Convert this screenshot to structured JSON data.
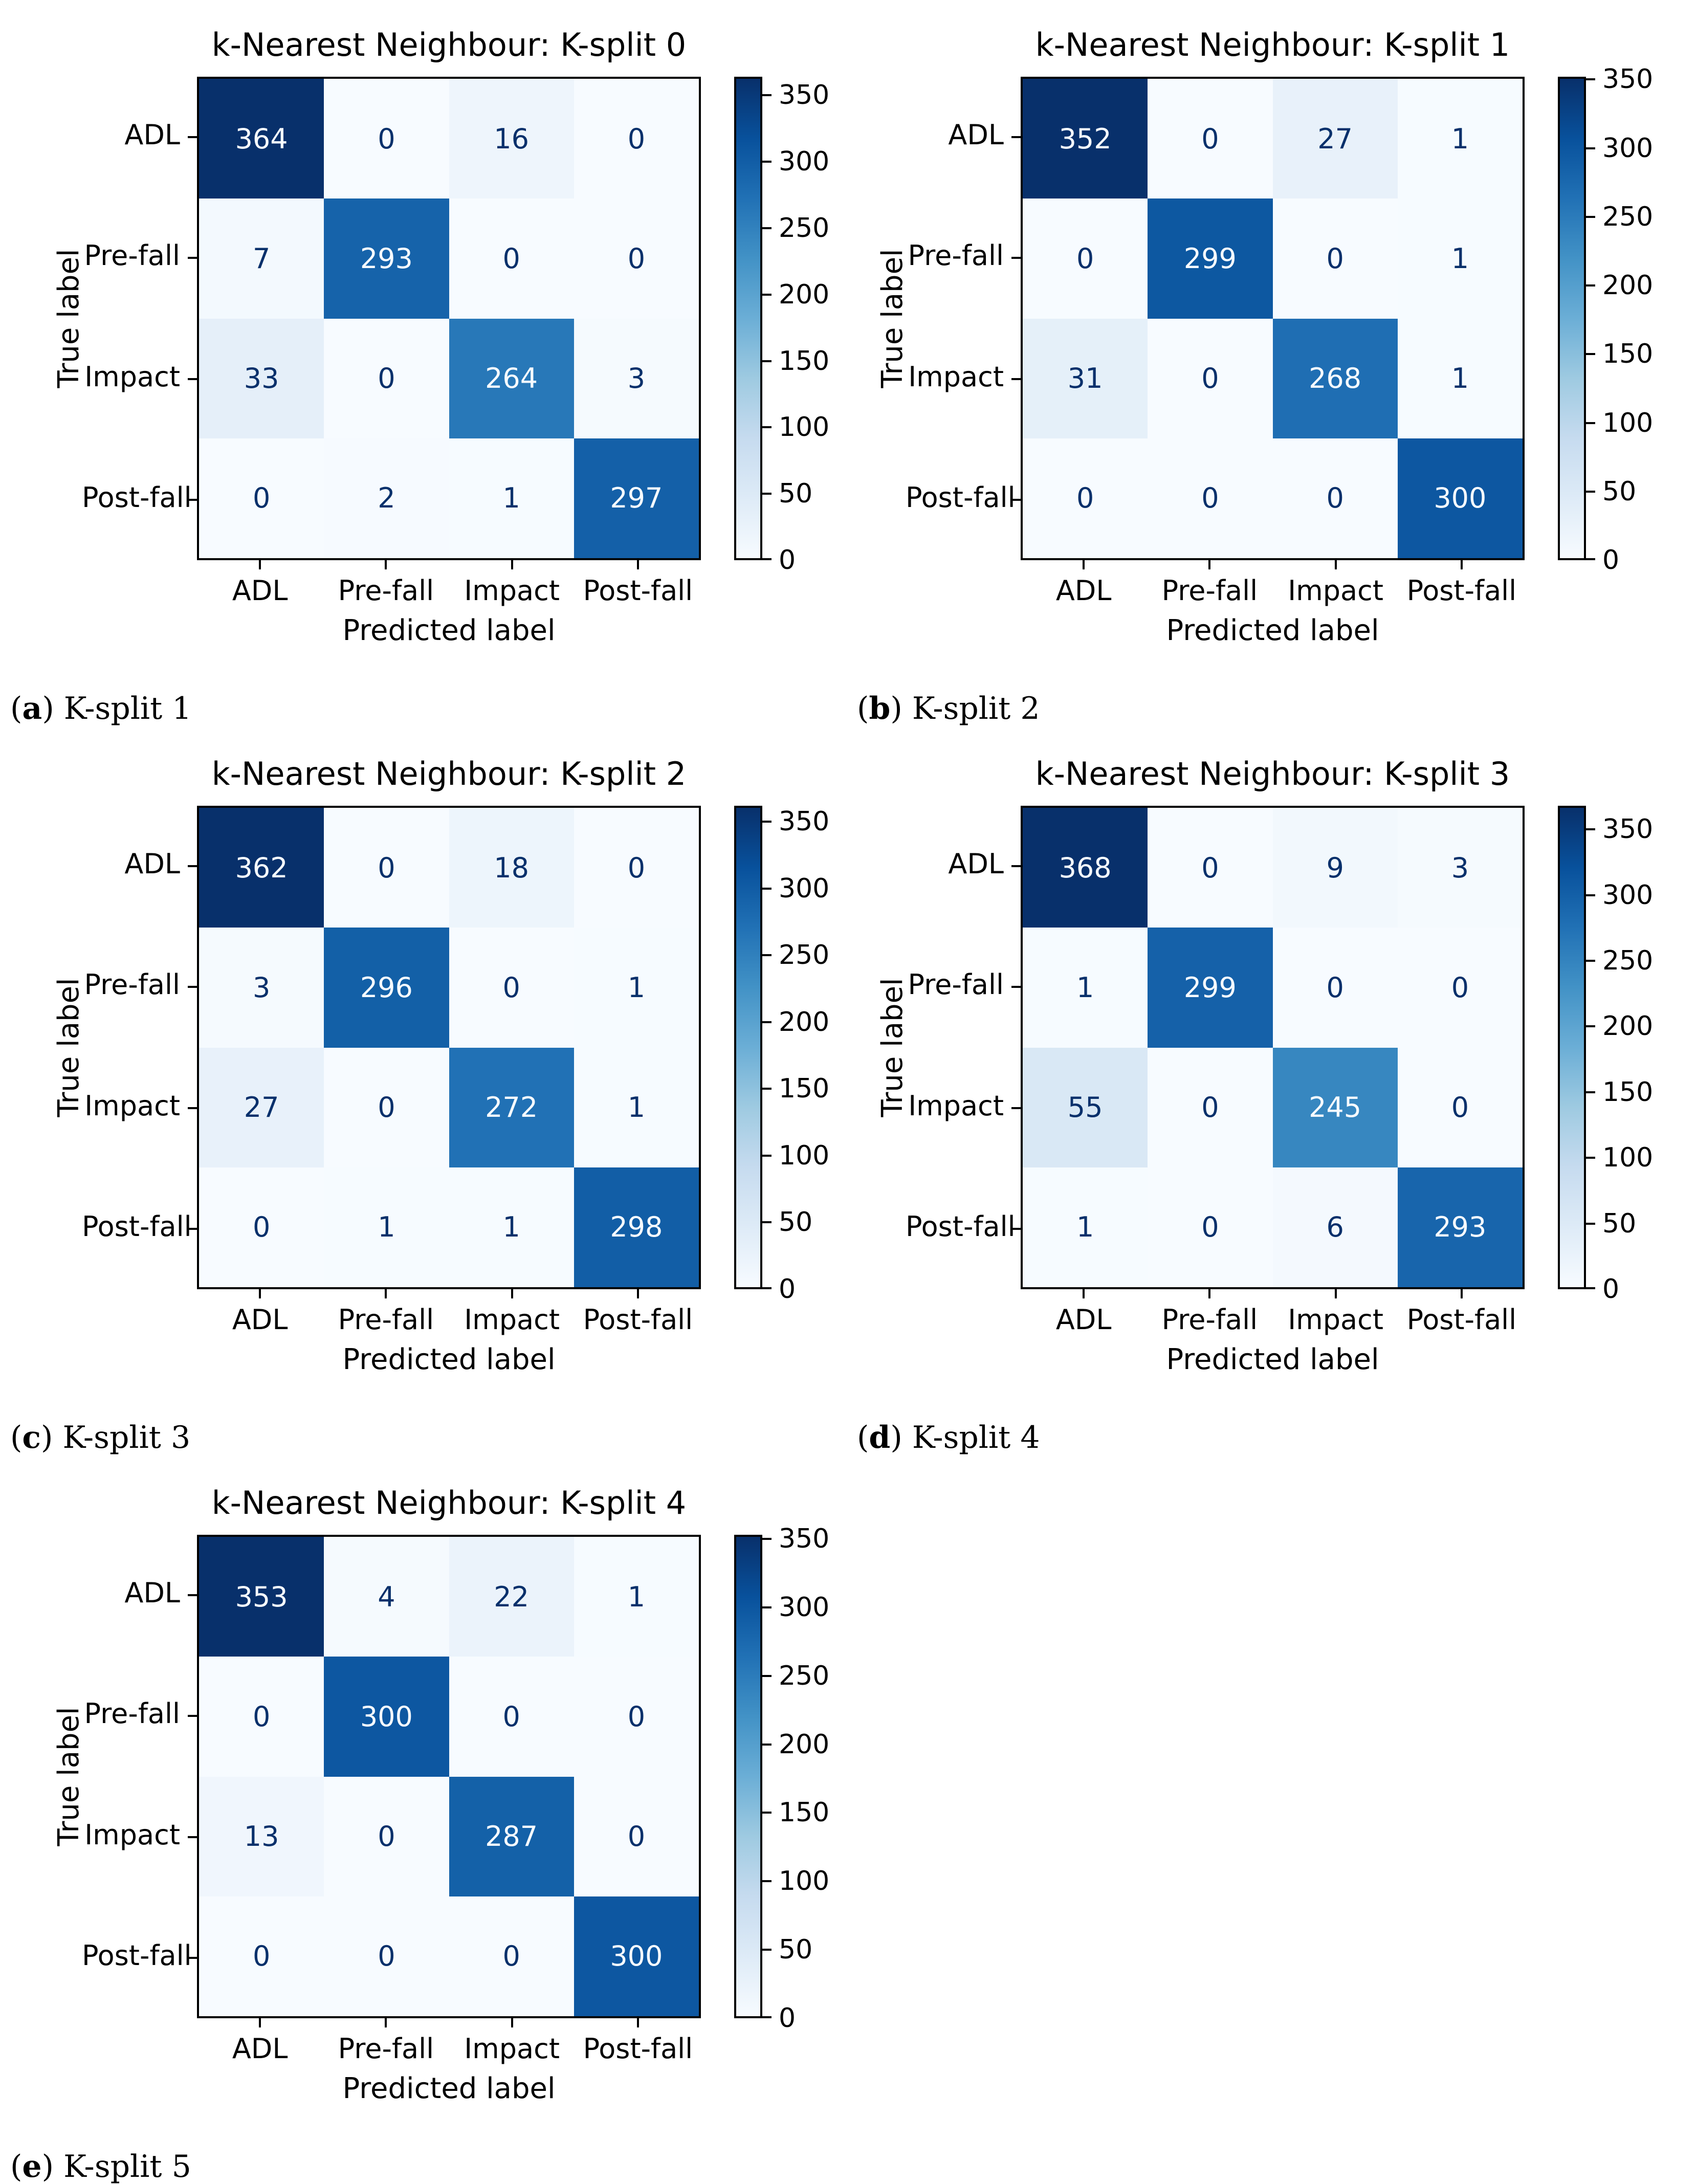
{
  "figure": {
    "ylabel": "True label",
    "xlabel": "Predicted label",
    "classes": [
      "ADL",
      "Pre-fall",
      "Impact",
      "Post-fall"
    ]
  },
  "chart_data": [
    {
      "type": "heatmap",
      "title": "k-Nearest Neighbour: K-split 0",
      "caption_letter": "a",
      "caption_text": "K-split 1",
      "xlabel": "Predicted label",
      "ylabel": "True label",
      "categories": [
        "ADL",
        "Pre-fall",
        "Impact",
        "Post-fall"
      ],
      "matrix": [
        [
          364,
          0,
          16,
          0
        ],
        [
          7,
          293,
          0,
          0
        ],
        [
          33,
          0,
          264,
          3
        ],
        [
          0,
          2,
          1,
          297
        ]
      ],
      "vmin": 0,
      "vmax": 364,
      "colorbar_ticks": [
        0,
        50,
        100,
        150,
        200,
        250,
        300,
        350
      ],
      "colormap": "Blues",
      "legend_position": "right-colorbar",
      "grid": false
    },
    {
      "type": "heatmap",
      "title": "k-Nearest Neighbour: K-split 1",
      "caption_letter": "b",
      "caption_text": "K-split 2",
      "xlabel": "Predicted label",
      "ylabel": "True label",
      "categories": [
        "ADL",
        "Pre-fall",
        "Impact",
        "Post-fall"
      ],
      "matrix": [
        [
          352,
          0,
          27,
          1
        ],
        [
          0,
          299,
          0,
          1
        ],
        [
          31,
          0,
          268,
          1
        ],
        [
          0,
          0,
          0,
          300
        ]
      ],
      "vmin": 0,
      "vmax": 352,
      "colorbar_ticks": [
        0,
        50,
        100,
        150,
        200,
        250,
        300,
        350
      ],
      "colormap": "Blues",
      "legend_position": "right-colorbar",
      "grid": false
    },
    {
      "type": "heatmap",
      "title": "k-Nearest Neighbour: K-split 2",
      "caption_letter": "c",
      "caption_text": "K-split 3",
      "xlabel": "Predicted label",
      "ylabel": "True label",
      "categories": [
        "ADL",
        "Pre-fall",
        "Impact",
        "Post-fall"
      ],
      "matrix": [
        [
          362,
          0,
          18,
          0
        ],
        [
          3,
          296,
          0,
          1
        ],
        [
          27,
          0,
          272,
          1
        ],
        [
          0,
          1,
          1,
          298
        ]
      ],
      "vmin": 0,
      "vmax": 362,
      "colorbar_ticks": [
        0,
        50,
        100,
        150,
        200,
        250,
        300,
        350
      ],
      "colormap": "Blues",
      "legend_position": "right-colorbar",
      "grid": false
    },
    {
      "type": "heatmap",
      "title": "k-Nearest Neighbour: K-split 3",
      "caption_letter": "d",
      "caption_text": "K-split 4",
      "xlabel": "Predicted label",
      "ylabel": "True label",
      "categories": [
        "ADL",
        "Pre-fall",
        "Impact",
        "Post-fall"
      ],
      "matrix": [
        [
          368,
          0,
          9,
          3
        ],
        [
          1,
          299,
          0,
          0
        ],
        [
          55,
          0,
          245,
          0
        ],
        [
          1,
          0,
          6,
          293
        ]
      ],
      "vmin": 0,
      "vmax": 368,
      "colorbar_ticks": [
        0,
        50,
        100,
        150,
        200,
        250,
        300,
        350
      ],
      "colormap": "Blues",
      "legend_position": "right-colorbar",
      "grid": false
    },
    {
      "type": "heatmap",
      "title": "k-Nearest Neighbour: K-split 4",
      "caption_letter": "e",
      "caption_text": "K-split 5",
      "xlabel": "Predicted label",
      "ylabel": "True label",
      "categories": [
        "ADL",
        "Pre-fall",
        "Impact",
        "Post-fall"
      ],
      "matrix": [
        [
          353,
          4,
          22,
          1
        ],
        [
          0,
          300,
          0,
          0
        ],
        [
          13,
          0,
          287,
          0
        ],
        [
          0,
          0,
          0,
          300
        ]
      ],
      "vmin": 0,
      "vmax": 353,
      "colorbar_ticks": [
        0,
        50,
        100,
        150,
        200,
        250,
        300,
        350
      ],
      "colormap": "Blues",
      "legend_position": "right-colorbar",
      "grid": false
    }
  ],
  "colors": {
    "colormap_stops": [
      "#f7fbff",
      "#deebf7",
      "#c6dbef",
      "#9ecae1",
      "#6baed6",
      "#4292c6",
      "#2171b5",
      "#08519c",
      "#08306b"
    ],
    "cell_text_dark": "#08306b",
    "cell_text_light": "#f7fbff",
    "axis": "#000000",
    "background": "#ffffff"
  }
}
